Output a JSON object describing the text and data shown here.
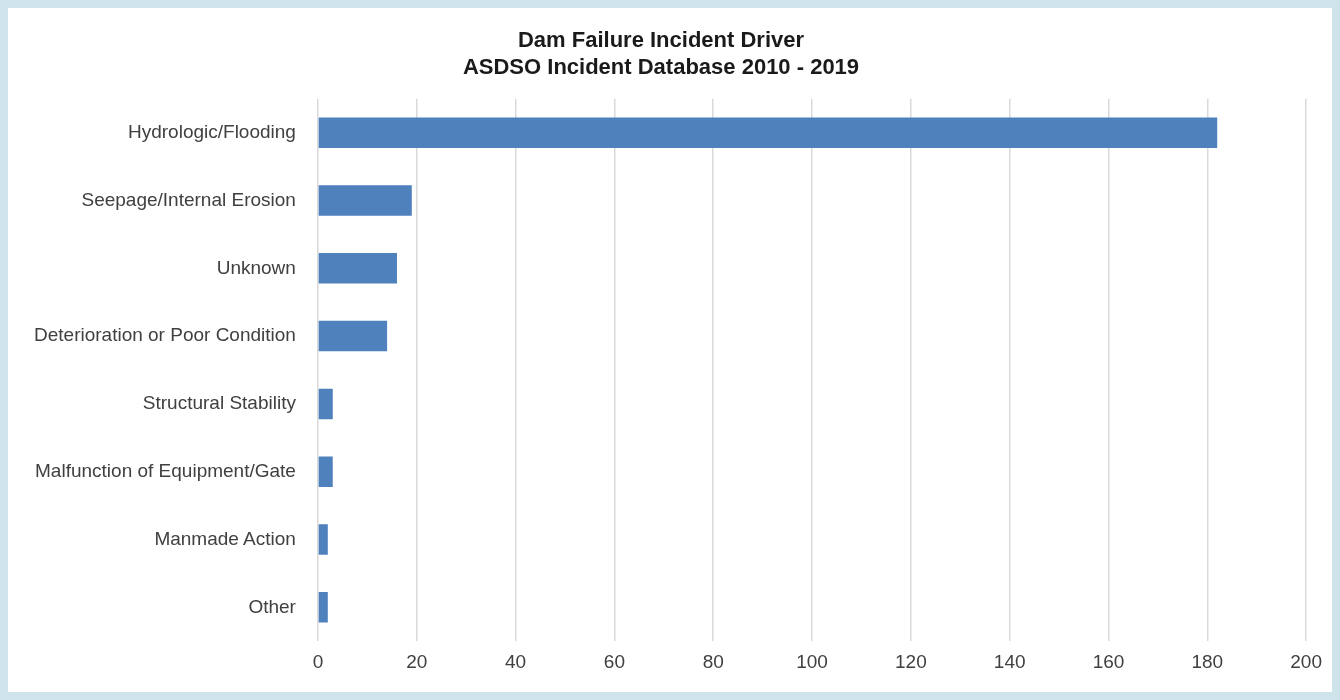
{
  "chart_data": {
    "type": "bar",
    "orientation": "horizontal",
    "title": "Dam Failure Incident Driver",
    "subtitle": "ASDSO Incident Database 2010 - 2019",
    "categories": [
      "Hydrologic/Flooding",
      "Seepage/Internal Erosion",
      "Unknown",
      "Deterioration or Poor Condition",
      "Structural Stability",
      "Malfunction of Equipment/Gate",
      "Manmade Action",
      "Other"
    ],
    "values": [
      182,
      19,
      16,
      14,
      3,
      3,
      2,
      2
    ],
    "color": "#4f81bd",
    "xlim": [
      0,
      200
    ],
    "xticks": [
      0,
      20,
      40,
      60,
      80,
      100,
      120,
      140,
      160,
      180,
      200
    ],
    "grid": "x",
    "legend": false
  }
}
